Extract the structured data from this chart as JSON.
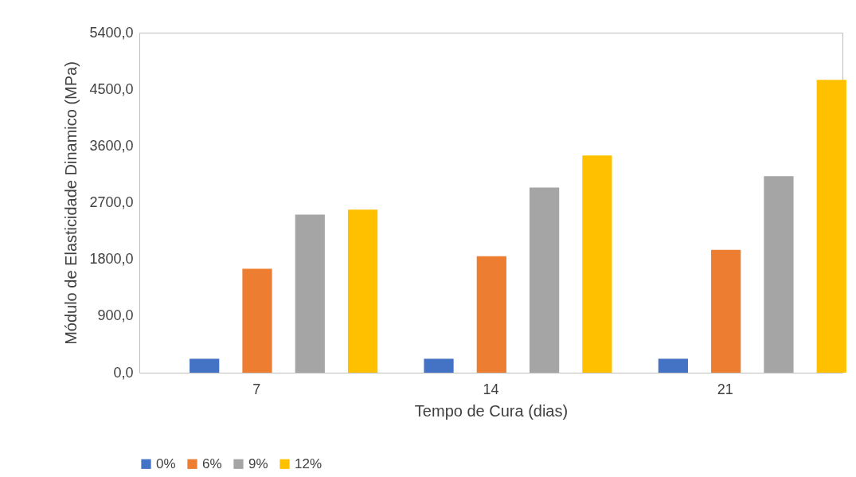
{
  "chart_data": {
    "type": "bar",
    "xlabel": "Tempo de Cura (dias)",
    "ylabel": "Módulo de Elasticidade Dinamico (MPa)",
    "categories": [
      "7",
      "14",
      "21"
    ],
    "series": [
      {
        "name": "0%",
        "color": "#4472c4",
        "values": [
          220,
          220,
          220
        ]
      },
      {
        "name": "6%",
        "color": "#ed7d31",
        "values": [
          1650,
          1850,
          1950
        ]
      },
      {
        "name": "9%",
        "color": "#a5a5a5",
        "values": [
          2510,
          2940,
          3120
        ]
      },
      {
        "name": "12%",
        "color": "#ffc000",
        "values": [
          2590,
          3450,
          4650
        ]
      }
    ],
    "ylim": [
      0,
      5400
    ],
    "yticks": [
      {
        "value": 0,
        "label": "0,0"
      },
      {
        "value": 900,
        "label": "900,0"
      },
      {
        "value": 1800,
        "label": "1800,0"
      },
      {
        "value": 2700,
        "label": "2700,0"
      },
      {
        "value": 3600,
        "label": "3600,0"
      },
      {
        "value": 4500,
        "label": "4500,0"
      },
      {
        "value": 5400,
        "label": "5400,0"
      }
    ],
    "grid": false,
    "legend": "bottom"
  }
}
